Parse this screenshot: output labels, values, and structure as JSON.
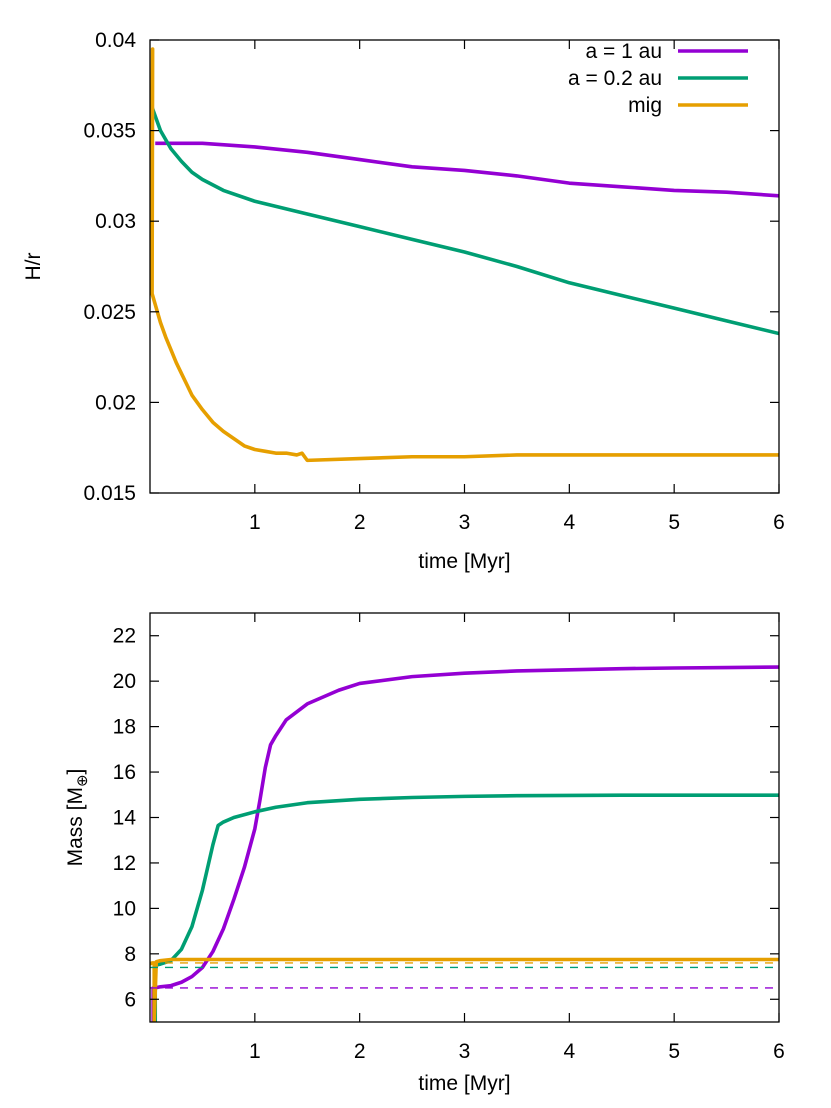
{
  "colors": {
    "a1": "#9400d3",
    "a02": "#009e73",
    "mig": "#e69f00",
    "axis": "#000000"
  },
  "chart_data": [
    {
      "type": "line",
      "name": "hr-panel",
      "xlabel": "time [Myr]",
      "ylabel": "H/r",
      "xlim": [
        0,
        6
      ],
      "ylim": [
        0.015,
        0.04
      ],
      "xticks": [
        1,
        2,
        3,
        4,
        5,
        6
      ],
      "xtick_labels": [
        "1",
        "2",
        "3",
        "4",
        "5",
        "6"
      ],
      "yticks": [
        0.015,
        0.02,
        0.025,
        0.03,
        0.035,
        0.04
      ],
      "ytick_labels": [
        "0.015",
        "0.02",
        "0.025",
        "0.03",
        "0.035",
        "0.04"
      ],
      "legend_position": "top-right",
      "series": [
        {
          "name": "a = 1 au",
          "color_key": "a1",
          "dashed": false,
          "x": [
            0.05,
            0.3,
            0.5,
            1.0,
            1.5,
            2.0,
            2.5,
            3.0,
            3.5,
            4.0,
            4.5,
            5.0,
            5.5,
            6.0
          ],
          "y": [
            0.0343,
            0.0343,
            0.0343,
            0.0341,
            0.0338,
            0.0334,
            0.033,
            0.0328,
            0.0325,
            0.0321,
            0.0319,
            0.0317,
            0.0316,
            0.0314
          ]
        },
        {
          "name": "a = 0.2 au",
          "color_key": "a02",
          "dashed": false,
          "x": [
            0.0,
            0.05,
            0.1,
            0.2,
            0.3,
            0.4,
            0.5,
            0.7,
            1.0,
            1.5,
            2.0,
            2.5,
            3.0,
            3.5,
            4.0,
            4.5,
            5.0,
            5.5,
            6.0
          ],
          "y": [
            0.0366,
            0.0358,
            0.035,
            0.034,
            0.0333,
            0.0327,
            0.0323,
            0.0317,
            0.0311,
            0.0304,
            0.0297,
            0.029,
            0.0283,
            0.0275,
            0.0266,
            0.0259,
            0.0252,
            0.0245,
            0.0238
          ]
        },
        {
          "name": "mig",
          "color_key": "mig",
          "dashed": false,
          "x": [
            0.0,
            0.01,
            0.02,
            0.025,
            0.02,
            0.03,
            0.06,
            0.1,
            0.15,
            0.2,
            0.25,
            0.3,
            0.35,
            0.4,
            0.5,
            0.6,
            0.7,
            0.8,
            0.9,
            1.0,
            1.1,
            1.2,
            1.3,
            1.4,
            1.45,
            1.5,
            2.0,
            2.5,
            3.0,
            3.5,
            4.0,
            4.5,
            5.0,
            5.5,
            6.0
          ],
          "y": [
            0.0263,
            0.03,
            0.036,
            0.0395,
            0.026,
            0.0258,
            0.0252,
            0.0244,
            0.0236,
            0.0229,
            0.0222,
            0.0216,
            0.021,
            0.0204,
            0.0196,
            0.0189,
            0.0184,
            0.018,
            0.0176,
            0.0174,
            0.0173,
            0.0172,
            0.0172,
            0.0171,
            0.0172,
            0.0168,
            0.0169,
            0.017,
            0.017,
            0.0171,
            0.0171,
            0.0171,
            0.0171,
            0.0171,
            0.0171
          ]
        }
      ]
    },
    {
      "type": "line",
      "name": "mass-panel",
      "xlabel": "time [Myr]",
      "ylabel": "Mass [M",
      "ylabel_sub": "⊕",
      "ylabel_close": "]",
      "xlim": [
        0,
        6
      ],
      "ylim": [
        5,
        23
      ],
      "xticks": [
        1,
        2,
        3,
        4,
        5,
        6
      ],
      "xtick_labels": [
        "1",
        "2",
        "3",
        "4",
        "5",
        "6"
      ],
      "yticks": [
        6,
        8,
        10,
        12,
        14,
        16,
        18,
        20,
        22
      ],
      "ytick_labels": [
        "6",
        "8",
        "10",
        "12",
        "14",
        "16",
        "18",
        "20",
        "22"
      ],
      "series": [
        {
          "name": "a = 1 au",
          "color_key": "a1",
          "dashed": false,
          "x": [
            0.03,
            0.03,
            0.05,
            0.1,
            0.2,
            0.3,
            0.4,
            0.5,
            0.6,
            0.7,
            0.8,
            0.9,
            1.0,
            1.05,
            1.1,
            1.15,
            1.2,
            1.3,
            1.5,
            1.8,
            2.0,
            2.5,
            3.0,
            3.5,
            4.0,
            4.5,
            5.0,
            5.5,
            6.0
          ],
          "y": [
            5.0,
            6.5,
            6.5,
            6.55,
            6.6,
            6.75,
            7.0,
            7.4,
            8.1,
            9.1,
            10.4,
            11.8,
            13.5,
            14.8,
            16.2,
            17.2,
            17.6,
            18.3,
            19.0,
            19.6,
            19.9,
            20.2,
            20.35,
            20.45,
            20.5,
            20.55,
            20.58,
            20.6,
            20.62
          ]
        },
        {
          "name": "a = 0.2 au",
          "color_key": "a02",
          "dashed": false,
          "x": [
            0.05,
            0.05,
            0.1,
            0.2,
            0.3,
            0.4,
            0.5,
            0.55,
            0.6,
            0.65,
            0.7,
            0.8,
            1.0,
            1.2,
            1.5,
            2.0,
            2.5,
            3.0,
            3.5,
            4.0,
            4.5,
            5.0,
            5.5,
            6.0
          ],
          "y": [
            5.0,
            7.5,
            7.55,
            7.7,
            8.2,
            9.2,
            10.8,
            11.8,
            12.8,
            13.65,
            13.8,
            14.0,
            14.25,
            14.45,
            14.65,
            14.8,
            14.88,
            14.93,
            14.96,
            14.97,
            14.98,
            14.98,
            14.98,
            14.98
          ]
        },
        {
          "name": "mig",
          "color_key": "mig",
          "dashed": false,
          "x": [
            0.0,
            0.02,
            0.04,
            0.04,
            0.06,
            0.1,
            0.2,
            0.5,
            1.0,
            2.0,
            3.0,
            4.0,
            5.0,
            6.0
          ],
          "y": [
            7.55,
            7.6,
            7.6,
            5.0,
            7.65,
            7.7,
            7.75,
            7.75,
            7.75,
            7.75,
            7.75,
            7.75,
            7.75,
            7.75
          ]
        },
        {
          "name": "mig-iso",
          "color_key": "mig",
          "dashed": true,
          "x": [
            0.0,
            6.0
          ],
          "y": [
            7.6,
            7.6
          ]
        },
        {
          "name": "a02-iso",
          "color_key": "a02",
          "dashed": true,
          "x": [
            0.0,
            6.0
          ],
          "y": [
            7.4,
            7.4
          ]
        },
        {
          "name": "a1-iso",
          "color_key": "a1",
          "dashed": true,
          "x": [
            0.0,
            6.0
          ],
          "y": [
            6.5,
            6.5
          ]
        }
      ]
    }
  ]
}
